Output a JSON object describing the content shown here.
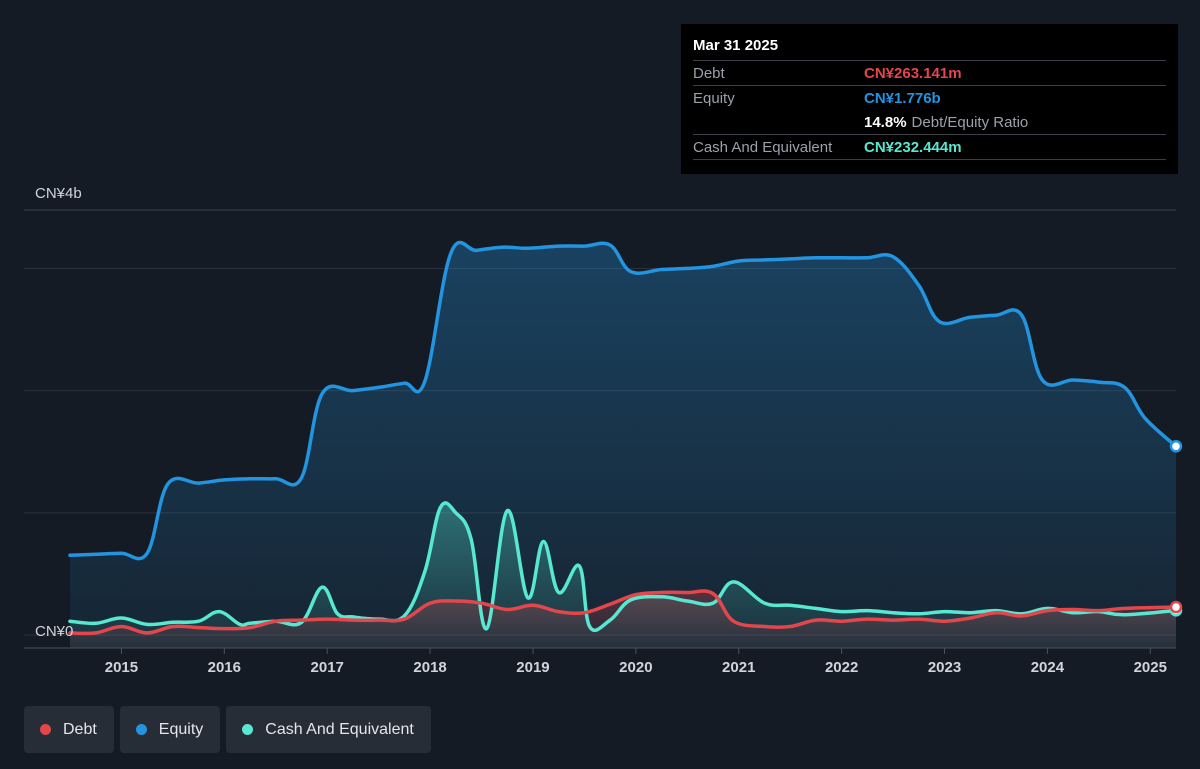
{
  "chart_data": {
    "type": "area",
    "title": "",
    "xlabel": "",
    "ylabel": "",
    "y_tick_labels": [
      {
        "value": 4000,
        "label": "CN¥4b"
      },
      {
        "value": 0,
        "label": "CN¥0"
      }
    ],
    "ylim": [
      -150,
      4000
    ],
    "xlim": [
      2014.5,
      2025.25
    ],
    "x_ticks": [
      "2015",
      "2016",
      "2017",
      "2018",
      "2019",
      "2020",
      "2021",
      "2022",
      "2023",
      "2024",
      "2025"
    ],
    "gridlines": [
      0,
      1150,
      2300,
      3450,
      4000
    ],
    "grid": true,
    "series": [
      {
        "name": "Equity",
        "color": "#2394df",
        "x": [
          2014.5,
          2014.75,
          2015.0,
          2015.25,
          2015.45,
          2015.75,
          2016.0,
          2016.25,
          2016.5,
          2016.75,
          2016.95,
          2017.25,
          2017.5,
          2017.75,
          2017.95,
          2018.2,
          2018.45,
          2018.7,
          2018.95,
          2019.25,
          2019.5,
          2019.75,
          2019.95,
          2020.25,
          2020.5,
          2020.75,
          2021.0,
          2021.25,
          2021.5,
          2021.75,
          2022.0,
          2022.25,
          2022.5,
          2022.75,
          2022.95,
          2023.25,
          2023.5,
          2023.75,
          2023.95,
          2024.25,
          2024.5,
          2024.75,
          2024.95,
          2025.25
        ],
        "values": [
          750,
          760,
          770,
          770,
          1420,
          1430,
          1460,
          1470,
          1470,
          1480,
          2270,
          2300,
          2330,
          2370,
          2390,
          3590,
          3620,
          3650,
          3640,
          3660,
          3660,
          3670,
          3420,
          3440,
          3450,
          3470,
          3520,
          3530,
          3540,
          3550,
          3550,
          3550,
          3560,
          3290,
          2950,
          2990,
          3010,
          3010,
          2400,
          2400,
          2380,
          2330,
          2040,
          1776
        ]
      },
      {
        "name": "Cash And Equivalent",
        "color": "#58e8d2",
        "x": [
          2014.5,
          2014.75,
          2015.0,
          2015.25,
          2015.5,
          2015.75,
          2015.95,
          2016.15,
          2016.25,
          2016.5,
          2016.75,
          2016.95,
          2017.1,
          2017.25,
          2017.5,
          2017.75,
          2017.95,
          2018.1,
          2018.25,
          2018.4,
          2018.55,
          2018.75,
          2018.95,
          2019.1,
          2019.25,
          2019.45,
          2019.55,
          2019.75,
          2019.95,
          2020.25,
          2020.5,
          2020.75,
          2020.95,
          2021.25,
          2021.5,
          2021.75,
          2022.0,
          2022.25,
          2022.5,
          2022.75,
          2023.0,
          2023.25,
          2023.5,
          2023.75,
          2024.0,
          2024.25,
          2024.5,
          2024.75,
          2025.25
        ],
        "values": [
          130,
          110,
          160,
          100,
          120,
          130,
          220,
          100,
          110,
          130,
          120,
          450,
          200,
          170,
          150,
          180,
          600,
          1200,
          1150,
          900,
          60,
          1170,
          350,
          880,
          400,
          650,
          80,
          140,
          330,
          360,
          320,
          300,
          500,
          300,
          280,
          250,
          220,
          230,
          210,
          200,
          220,
          210,
          230,
          200,
          250,
          210,
          220,
          190,
          232
        ]
      },
      {
        "name": "Debt",
        "color": "#e3464b",
        "x": [
          2014.5,
          2014.75,
          2015.0,
          2015.25,
          2015.5,
          2015.75,
          2016.0,
          2016.25,
          2016.5,
          2016.75,
          2017.0,
          2017.25,
          2017.5,
          2017.75,
          2018.0,
          2018.25,
          2018.5,
          2018.75,
          2019.0,
          2019.25,
          2019.5,
          2019.75,
          2020.0,
          2020.25,
          2020.5,
          2020.75,
          2020.95,
          2021.25,
          2021.5,
          2021.75,
          2022.0,
          2022.25,
          2022.5,
          2022.75,
          2023.0,
          2023.25,
          2023.5,
          2023.75,
          2024.0,
          2024.25,
          2024.5,
          2024.75,
          2025.25
        ],
        "values": [
          20,
          20,
          80,
          20,
          80,
          70,
          60,
          70,
          130,
          140,
          150,
          140,
          140,
          150,
          300,
          320,
          300,
          240,
          280,
          220,
          210,
          290,
          380,
          400,
          400,
          390,
          130,
          80,
          80,
          140,
          130,
          150,
          140,
          150,
          130,
          160,
          210,
          180,
          230,
          240,
          230,
          250,
          263.141
        ]
      }
    ],
    "tooltip": {
      "date": "Mar 31 2025",
      "debt_label": "Debt",
      "debt_value": "CN¥263.141m",
      "equity_label": "Equity",
      "equity_value": "CN¥1.776b",
      "ratio_value": "14.8%",
      "ratio_label": "Debt/Equity Ratio",
      "cash_label": "Cash And Equivalent",
      "cash_value": "CN¥232.444m"
    },
    "legend": [
      {
        "name": "Debt",
        "color": "#e3464b"
      },
      {
        "name": "Equity",
        "color": "#2394df"
      },
      {
        "name": "Cash And Equivalent",
        "color": "#58e8d2"
      }
    ],
    "legend_placement": "bottom-left"
  }
}
